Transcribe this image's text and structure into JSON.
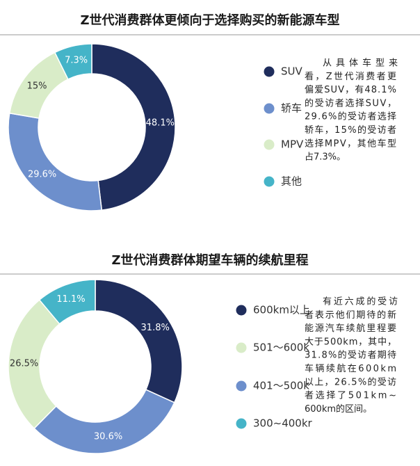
{
  "chart_data": [
    {
      "type": "donut",
      "title": "Z世代消费群体更倾向于选择购买的新能源车型",
      "categories": [
        "SUV",
        "轿车",
        "MPV",
        "其他"
      ],
      "values": [
        48.1,
        29.6,
        15,
        7.3
      ],
      "value_labels": [
        "48.1%",
        "29.6%",
        "15%",
        "7.3%"
      ],
      "colors": [
        "#1f2d5c",
        "#6d8fcc",
        "#d9ecc8",
        "#45b4c8"
      ],
      "text": [
        "从具体车型来",
        "看，Z世代消费者更",
        "偏爱SUV，有48.1%",
        "的受访者选择SUV，",
        "29.6%的受访者选择",
        "轿车，15%的受访者",
        "选择MPV，其他车型",
        "占7.3%。"
      ]
    },
    {
      "type": "donut",
      "title": "Z世代消费群体期望车辆的续航里程",
      "categories": [
        "600km以上",
        "401～500k",
        "501～600k",
        "300~400kr"
      ],
      "values": [
        31.8,
        30.6,
        26.5,
        11.1
      ],
      "value_labels": [
        "31.8%",
        "30.6%",
        "26.5%",
        "11.1%"
      ],
      "colors": [
        "#1f2d5c",
        "#6d8fcc",
        "#d9ecc8",
        "#45b4c8"
      ],
      "text": [
        "有近六成的受访",
        "者表示他们期待的新",
        "能源汽车续航里程要",
        "大于500km，其中，",
        "31.8%的受访者期待",
        "车辆续航在600km",
        "以上，26.5%的受访",
        "者选择了501km~",
        "600km的区间。"
      ]
    }
  ]
}
